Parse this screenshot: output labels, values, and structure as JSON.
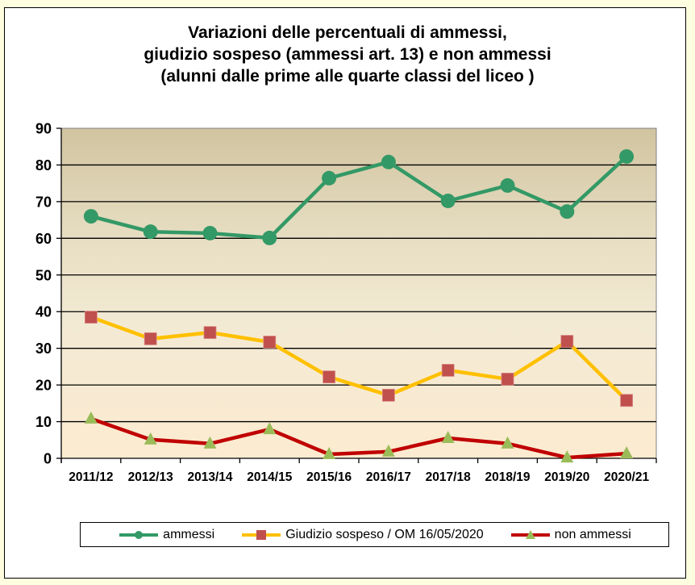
{
  "chart_data": {
    "type": "line",
    "title": "Variazioni delle percentuali di ammessi, giudizio sospeso (ammessi art. 13) e non ammessi (alunni dalle prime alle quarte classi del liceo )",
    "title_lines": [
      "Variazioni delle percentuali di ammessi,",
      "giudizio sospeso (ammessi art. 13) e non ammessi",
      "(alunni dalle prime alle quarte classi del liceo )"
    ],
    "xlabel": "",
    "ylabel": "",
    "categories": [
      "2011/12",
      "2012/13",
      "2013/14",
      "2014/15",
      "2015/16",
      "2016/17",
      "2017/18",
      "2018/19",
      "2019/20",
      "2020/21"
    ],
    "ylim": [
      0,
      90
    ],
    "yticks": [
      0,
      10,
      20,
      30,
      40,
      50,
      60,
      70,
      80,
      90
    ],
    "grid": true,
    "legend_position": "bottom",
    "series": [
      {
        "name": "ammessi",
        "color": "#339966",
        "marker": "circle",
        "marker_color": "#339966",
        "values": [
          66.0,
          61.8,
          61.4,
          60.1,
          76.4,
          80.8,
          70.2,
          74.4,
          67.3,
          82.3
        ]
      },
      {
        "name": "Giudizio sospeso / OM 16/05/2020",
        "color": "#FFC000",
        "marker": "square",
        "marker_color": "#C0504D",
        "values": [
          38.5,
          32.6,
          34.3,
          31.7,
          22.2,
          17.2,
          24.0,
          21.6,
          31.9,
          15.8
        ]
      },
      {
        "name": "non ammessi",
        "color": "#C00000",
        "marker": "triangle",
        "marker_color": "#9BBB59",
        "values": [
          10.8,
          5.1,
          4.0,
          7.9,
          1.1,
          1.8,
          5.5,
          4.0,
          0.2,
          1.3
        ]
      }
    ],
    "plot_background_gradient": [
      "#D3C6A3",
      "#FCEBD0"
    ]
  },
  "legend": {
    "items": [
      {
        "label": "ammessi"
      },
      {
        "label": "Giudizio sospeso / OM 16/05/2020"
      },
      {
        "label": "non ammessi"
      }
    ]
  }
}
